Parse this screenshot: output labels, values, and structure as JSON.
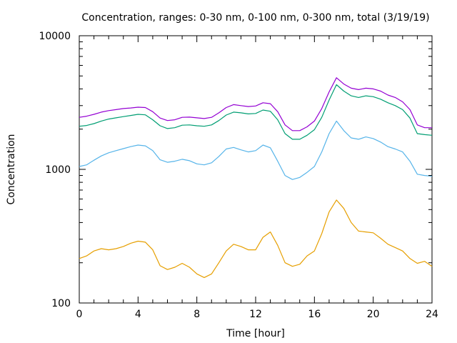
{
  "chart_data": {
    "type": "line",
    "title": "Concentration, ranges: 0-30 nm, 0-100 nm, 0-300 nm, total (3/19/19)",
    "xlabel": "Time [hour]",
    "ylabel": "Concentration",
    "x_scale": "linear",
    "y_scale": "log",
    "xlim": [
      0,
      24
    ],
    "ylim": [
      100,
      10000
    ],
    "x_ticks": [
      "0",
      "4",
      "8",
      "12",
      "16",
      "20",
      "24"
    ],
    "y_ticks": [
      "100",
      "1000",
      "10000"
    ],
    "grid": false,
    "legend": "none",
    "series": [
      {
        "color": "#9400d3",
        "points": [
          [
            0,
            2450
          ],
          [
            0.5,
            2500
          ],
          [
            1,
            2580
          ],
          [
            1.5,
            2680
          ],
          [
            2,
            2750
          ],
          [
            2.5,
            2800
          ],
          [
            3,
            2850
          ],
          [
            3.5,
            2880
          ],
          [
            4,
            2920
          ],
          [
            4.5,
            2900
          ],
          [
            5,
            2700
          ],
          [
            5.5,
            2420
          ],
          [
            6,
            2320
          ],
          [
            6.5,
            2350
          ],
          [
            7,
            2450
          ],
          [
            7.5,
            2460
          ],
          [
            8,
            2430
          ],
          [
            8.5,
            2400
          ],
          [
            9,
            2450
          ],
          [
            9.5,
            2650
          ],
          [
            10,
            2900
          ],
          [
            10.5,
            3050
          ],
          [
            11,
            3000
          ],
          [
            11.5,
            2950
          ],
          [
            12,
            2980
          ],
          [
            12.5,
            3150
          ],
          [
            13,
            3100
          ],
          [
            13.5,
            2700
          ],
          [
            14,
            2150
          ],
          [
            14.5,
            1950
          ],
          [
            15,
            1950
          ],
          [
            15.5,
            2080
          ],
          [
            16,
            2300
          ],
          [
            16.5,
            2850
          ],
          [
            17,
            3800
          ],
          [
            17.5,
            4850
          ],
          [
            18,
            4350
          ],
          [
            18.5,
            4050
          ],
          [
            19,
            3950
          ],
          [
            19.5,
            4050
          ],
          [
            20,
            4000
          ],
          [
            20.5,
            3850
          ],
          [
            21,
            3600
          ],
          [
            21.5,
            3450
          ],
          [
            22,
            3200
          ],
          [
            22.5,
            2800
          ],
          [
            23,
            2150
          ],
          [
            23.5,
            2050
          ],
          [
            24,
            2050
          ]
        ]
      },
      {
        "color": "#009e73",
        "points": [
          [
            0,
            2100
          ],
          [
            0.5,
            2130
          ],
          [
            1,
            2200
          ],
          [
            1.5,
            2300
          ],
          [
            2,
            2380
          ],
          [
            2.5,
            2430
          ],
          [
            3,
            2480
          ],
          [
            3.5,
            2530
          ],
          [
            4,
            2580
          ],
          [
            4.5,
            2560
          ],
          [
            5,
            2350
          ],
          [
            5.5,
            2120
          ],
          [
            6,
            2020
          ],
          [
            6.5,
            2050
          ],
          [
            7,
            2140
          ],
          [
            7.5,
            2150
          ],
          [
            8,
            2120
          ],
          [
            8.5,
            2100
          ],
          [
            9,
            2150
          ],
          [
            9.5,
            2320
          ],
          [
            10,
            2550
          ],
          [
            10.5,
            2680
          ],
          [
            11,
            2650
          ],
          [
            11.5,
            2600
          ],
          [
            12,
            2620
          ],
          [
            12.5,
            2780
          ],
          [
            13,
            2720
          ],
          [
            13.5,
            2350
          ],
          [
            14,
            1850
          ],
          [
            14.5,
            1680
          ],
          [
            15,
            1680
          ],
          [
            15.5,
            1800
          ],
          [
            16,
            1980
          ],
          [
            16.5,
            2450
          ],
          [
            17,
            3300
          ],
          [
            17.5,
            4300
          ],
          [
            18,
            3850
          ],
          [
            18.5,
            3550
          ],
          [
            19,
            3450
          ],
          [
            19.5,
            3550
          ],
          [
            20,
            3500
          ],
          [
            20.5,
            3350
          ],
          [
            21,
            3150
          ],
          [
            21.5,
            3000
          ],
          [
            22,
            2800
          ],
          [
            22.5,
            2420
          ],
          [
            23,
            1850
          ],
          [
            23.5,
            1820
          ],
          [
            24,
            1800
          ]
        ]
      },
      {
        "color": "#56b4e9",
        "points": [
          [
            0,
            1050
          ],
          [
            0.5,
            1080
          ],
          [
            1,
            1170
          ],
          [
            1.5,
            1260
          ],
          [
            2,
            1330
          ],
          [
            2.5,
            1380
          ],
          [
            3,
            1430
          ],
          [
            3.5,
            1480
          ],
          [
            4,
            1520
          ],
          [
            4.5,
            1500
          ],
          [
            5,
            1380
          ],
          [
            5.5,
            1180
          ],
          [
            6,
            1130
          ],
          [
            6.5,
            1150
          ],
          [
            7,
            1190
          ],
          [
            7.5,
            1160
          ],
          [
            8,
            1100
          ],
          [
            8.5,
            1080
          ],
          [
            9,
            1120
          ],
          [
            9.5,
            1250
          ],
          [
            10,
            1420
          ],
          [
            10.5,
            1460
          ],
          [
            11,
            1400
          ],
          [
            11.5,
            1350
          ],
          [
            12,
            1380
          ],
          [
            12.5,
            1520
          ],
          [
            13,
            1450
          ],
          [
            13.5,
            1150
          ],
          [
            14,
            900
          ],
          [
            14.5,
            840
          ],
          [
            15,
            870
          ],
          [
            15.5,
            950
          ],
          [
            16,
            1050
          ],
          [
            16.5,
            1350
          ],
          [
            17,
            1850
          ],
          [
            17.5,
            2300
          ],
          [
            18,
            1950
          ],
          [
            18.5,
            1720
          ],
          [
            19,
            1680
          ],
          [
            19.5,
            1750
          ],
          [
            20,
            1700
          ],
          [
            20.5,
            1600
          ],
          [
            21,
            1480
          ],
          [
            21.5,
            1420
          ],
          [
            22,
            1350
          ],
          [
            22.5,
            1150
          ],
          [
            23,
            920
          ],
          [
            23.5,
            900
          ],
          [
            24,
            890
          ]
        ]
      },
      {
        "color": "#e69f00",
        "points": [
          [
            0,
            215
          ],
          [
            0.5,
            225
          ],
          [
            1,
            245
          ],
          [
            1.5,
            255
          ],
          [
            2,
            250
          ],
          [
            2.5,
            255
          ],
          [
            3,
            265
          ],
          [
            3.5,
            280
          ],
          [
            4,
            290
          ],
          [
            4.5,
            285
          ],
          [
            5,
            250
          ],
          [
            5.5,
            190
          ],
          [
            6,
            178
          ],
          [
            6.5,
            185
          ],
          [
            7,
            198
          ],
          [
            7.5,
            185
          ],
          [
            8,
            165
          ],
          [
            8.5,
            155
          ],
          [
            9,
            165
          ],
          [
            9.5,
            200
          ],
          [
            10,
            245
          ],
          [
            10.5,
            275
          ],
          [
            11,
            265
          ],
          [
            11.5,
            250
          ],
          [
            12,
            250
          ],
          [
            12.5,
            310
          ],
          [
            13,
            340
          ],
          [
            13.5,
            270
          ],
          [
            14,
            200
          ],
          [
            14.5,
            188
          ],
          [
            15,
            195
          ],
          [
            15.5,
            225
          ],
          [
            16,
            245
          ],
          [
            16.5,
            330
          ],
          [
            17,
            480
          ],
          [
            17.5,
            590
          ],
          [
            18,
            510
          ],
          [
            18.5,
            400
          ],
          [
            19,
            345
          ],
          [
            19.5,
            340
          ],
          [
            20,
            335
          ],
          [
            20.5,
            305
          ],
          [
            21,
            275
          ],
          [
            21.5,
            260
          ],
          [
            22,
            245
          ],
          [
            22.5,
            215
          ],
          [
            23,
            198
          ],
          [
            23.5,
            205
          ],
          [
            24,
            188
          ]
        ]
      }
    ]
  }
}
